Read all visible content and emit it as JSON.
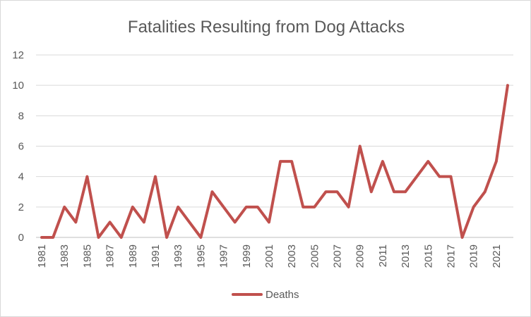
{
  "chart_data": {
    "type": "line",
    "title": "Fatalities Resulting from Dog Attacks",
    "xlabel": "",
    "ylabel": "",
    "x": [
      1981,
      1982,
      1983,
      1984,
      1985,
      1986,
      1987,
      1988,
      1989,
      1990,
      1991,
      1992,
      1993,
      1994,
      1995,
      1996,
      1997,
      1998,
      1999,
      2000,
      2001,
      2002,
      2003,
      2004,
      2005,
      2006,
      2007,
      2008,
      2009,
      2010,
      2011,
      2012,
      2013,
      2014,
      2015,
      2016,
      2017,
      2018,
      2019,
      2020,
      2021,
      2022
    ],
    "x_tick_labels": [
      "1981",
      "1983",
      "1985",
      "1987",
      "1989",
      "1991",
      "1993",
      "1995",
      "1997",
      "1999",
      "2001",
      "2003",
      "2005",
      "2007",
      "2009",
      "2011",
      "2013",
      "2015",
      "2017",
      "2019",
      "2021"
    ],
    "y_ticks": [
      0,
      2,
      4,
      6,
      8,
      10,
      12
    ],
    "ylim": [
      0,
      12
    ],
    "grid": true,
    "legend_position": "bottom",
    "series": [
      {
        "name": "Deaths",
        "color": "#c0504d",
        "values": [
          0,
          0,
          2,
          1,
          4,
          0,
          1,
          0,
          2,
          1,
          4,
          0,
          2,
          1,
          0,
          3,
          2,
          1,
          2,
          2,
          1,
          5,
          5,
          2,
          2,
          3,
          3,
          2,
          6,
          3,
          5,
          3,
          3,
          4,
          5,
          4,
          4,
          0,
          2,
          3,
          5,
          10
        ]
      }
    ]
  }
}
